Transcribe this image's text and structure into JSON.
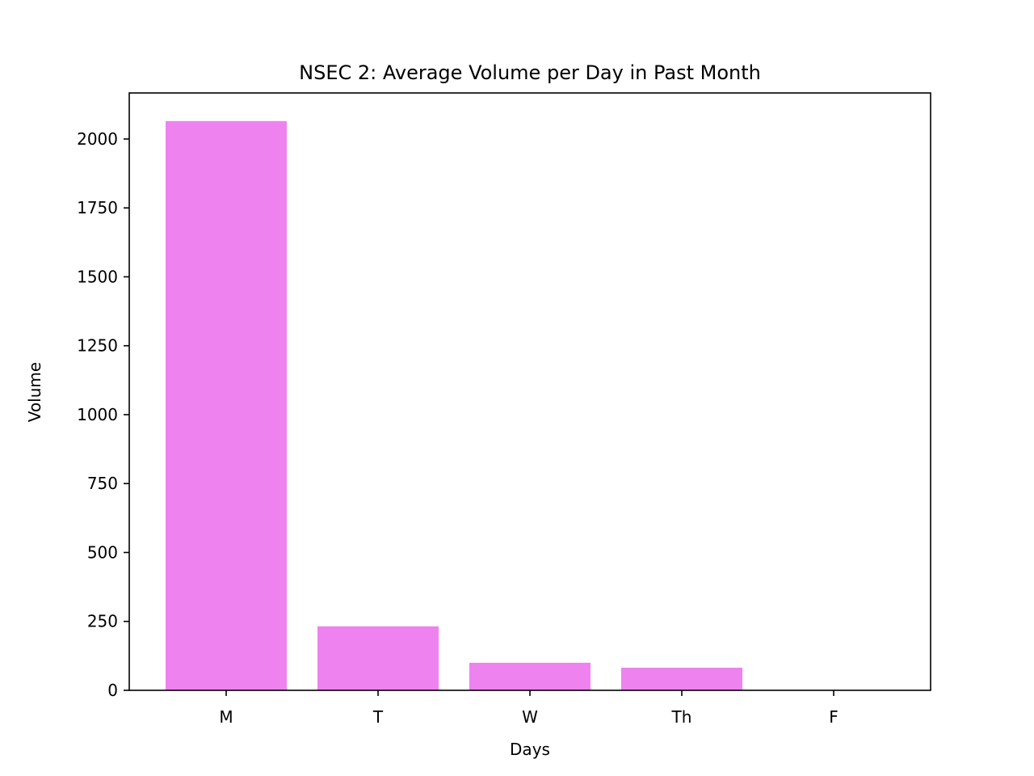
{
  "chart_data": {
    "type": "bar",
    "title": "NSEC 2: Average Volume per Day in Past Month",
    "xlabel": "Days",
    "ylabel": "Volume",
    "categories": [
      "M",
      "T",
      "W",
      "Th",
      "F"
    ],
    "values": [
      2065,
      232,
      100,
      82,
      0
    ],
    "ylim": [
      0,
      2167
    ],
    "yticks": [
      0,
      250,
      500,
      750,
      1000,
      1250,
      1500,
      1750,
      2000
    ],
    "ytick_labels": [
      "0",
      "250",
      "500",
      "750",
      "1000",
      "1250",
      "1500",
      "1750",
      "2000"
    ],
    "bar_color": "#ee82ee",
    "grid": false,
    "legend": "none"
  }
}
